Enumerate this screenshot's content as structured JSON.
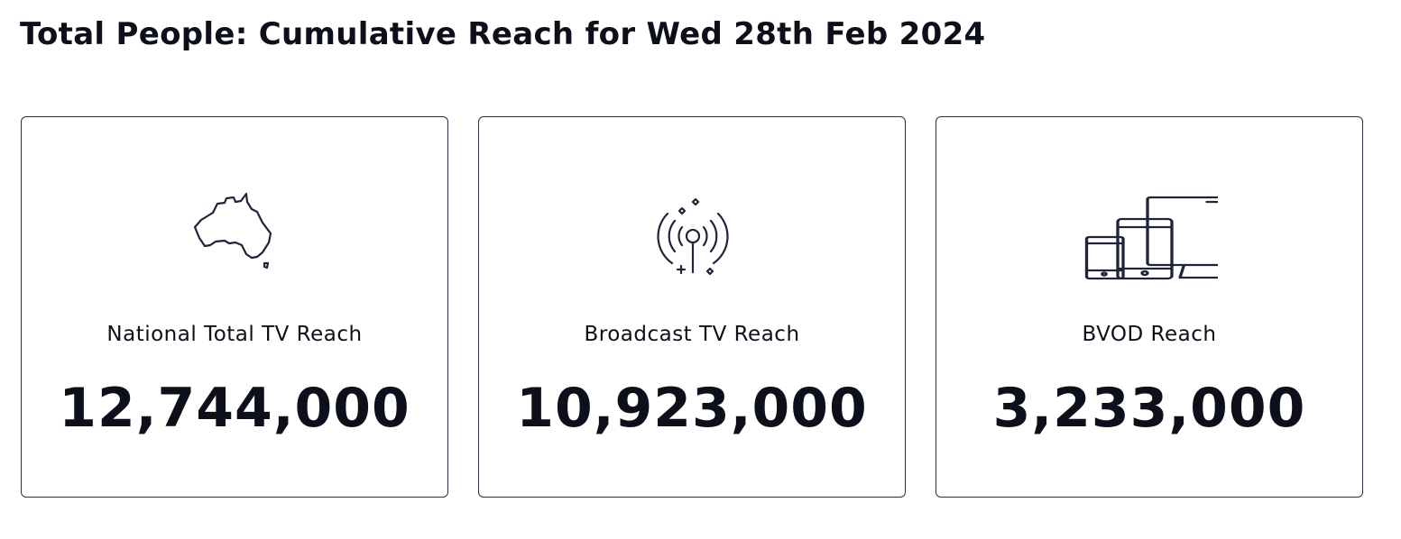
{
  "header": {
    "title": "Total People: Cumulative Reach for Wed 28th Feb 2024"
  },
  "cards": [
    {
      "label": "National Total TV Reach",
      "value": "12,744,000"
    },
    {
      "label": "Broadcast TV Reach",
      "value": "10,923,000"
    },
    {
      "label": "BVOD Reach",
      "value": "3,233,000"
    }
  ]
}
